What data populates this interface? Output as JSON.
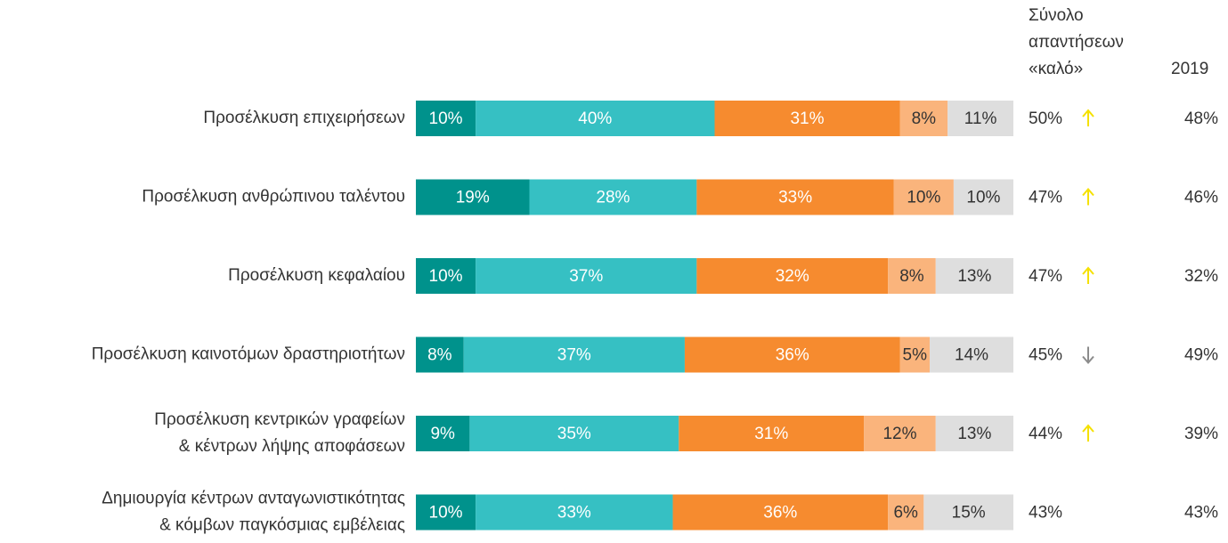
{
  "chart_data": {
    "type": "bar",
    "orientation": "horizontal",
    "stacked": true,
    "categories": [
      [
        "Προσέλκυση επιχειρήσεων"
      ],
      [
        "Προσέλκυση ανθρώπινου ταλέντου"
      ],
      [
        "Προσέλκυση κεφαλαίου"
      ],
      [
        "Προσέλκυση καινοτόμων δραστηριοτήτων"
      ],
      [
        "Προσέλκυση κεντρικών γραφείων",
        "& κέντρων λήψης αποφάσεων"
      ],
      [
        "Δημιουργία κέντρων ανταγωνιστικότητας",
        "& κόμβων παγκόσμιας εμβέλειας"
      ]
    ],
    "xlim": [
      0,
      100
    ],
    "series": [
      {
        "color": "#00928c",
        "text_color": "#ffffff",
        "values": [
          10,
          19,
          10,
          8,
          9,
          10
        ],
        "value_labels": [
          "10%",
          "19%",
          "10%",
          "8%",
          "9%",
          "10%"
        ]
      },
      {
        "color": "#36c0c3",
        "text_color": "#ffffff",
        "values": [
          40,
          28,
          37,
          37,
          35,
          33
        ],
        "value_labels": [
          "40%",
          "28%",
          "37%",
          "37%",
          "35%",
          "33%"
        ]
      },
      {
        "color": "#f68b2f",
        "text_color": "#ffffff",
        "values": [
          31,
          33,
          32,
          36,
          31,
          36
        ],
        "value_labels": [
          "31%",
          "33%",
          "32%",
          "36%",
          "31%",
          "36%"
        ]
      },
      {
        "color": "#fab47c",
        "text_color": "#333333",
        "values": [
          8,
          10,
          8,
          5,
          12,
          6
        ],
        "value_labels": [
          "8%",
          "10%",
          "8%",
          "5%",
          "12%",
          "6%"
        ]
      },
      {
        "color": "#dedede",
        "text_color": "#333333",
        "values": [
          11,
          10,
          13,
          14,
          13,
          15
        ],
        "value_labels": [
          "11%",
          "10%",
          "13%",
          "14%",
          "13%",
          "15%"
        ]
      }
    ],
    "total_header": [
      "Σύνολο",
      "απαντήσεων",
      "«καλό»"
    ],
    "totals": {
      "values": [
        50,
        47,
        47,
        45,
        44,
        43
      ],
      "value_labels": [
        "50%",
        "47%",
        "47%",
        "45%",
        "44%",
        "43%"
      ]
    },
    "trend": [
      "up",
      "up",
      "up",
      "down",
      "up",
      null
    ],
    "trend_colors": {
      "up": "#f5e100",
      "down": "#8c8c8c"
    },
    "previous_header": "2019",
    "previous": {
      "values": [
        48,
        46,
        32,
        49,
        39,
        43
      ],
      "value_labels": [
        "48%",
        "46%",
        "32%",
        "49%",
        "39%",
        "43%"
      ]
    }
  }
}
